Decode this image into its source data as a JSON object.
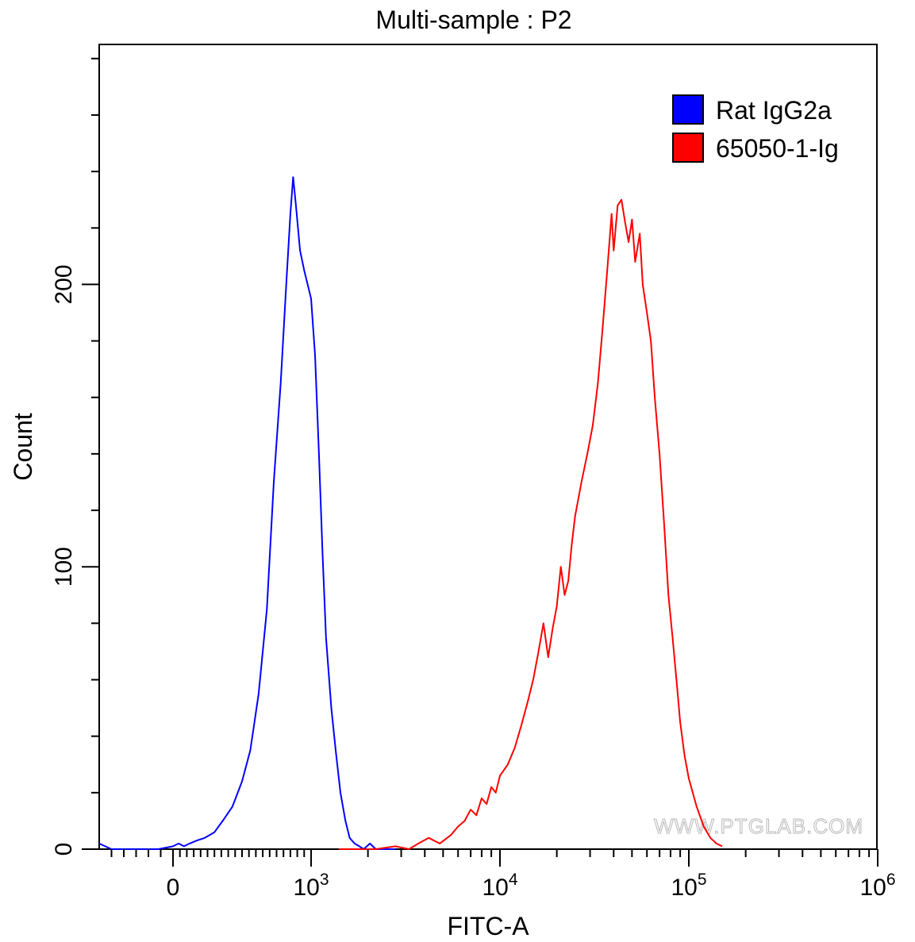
{
  "chart_data": {
    "type": "line",
    "title": "Multi-sample : P2",
    "xlabel": "FITC-A",
    "ylabel": "Count",
    "x_scale": "biexponential (linear near 0, log above 10^3)",
    "xlim": [
      -300,
      1000000
    ],
    "ylim": [
      0,
      285
    ],
    "grid": false,
    "legend_position": "top-right",
    "x_ticks": [
      {
        "value": 0,
        "label": "0",
        "sup": ""
      },
      {
        "value": 1000,
        "label": "10",
        "sup": "3"
      },
      {
        "value": 10000,
        "label": "10",
        "sup": "4"
      },
      {
        "value": 100000,
        "label": "10",
        "sup": "5"
      },
      {
        "value": 1000000,
        "label": "10",
        "sup": "6"
      }
    ],
    "y_ticks": [
      {
        "value": 0,
        "label": "0"
      },
      {
        "value": 100,
        "label": "100"
      },
      {
        "value": 200,
        "label": "200"
      }
    ],
    "watermark": "WWW.PTGLAB.COM",
    "series": [
      {
        "name": "Rat IgG2a",
        "color": "#0000ff",
        "points": [
          [
            -300,
            2
          ],
          [
            -250,
            0
          ],
          [
            -150,
            0
          ],
          [
            -60,
            0
          ],
          [
            0,
            1
          ],
          [
            40,
            2
          ],
          [
            80,
            1
          ],
          [
            120,
            2
          ],
          [
            170,
            3
          ],
          [
            230,
            4
          ],
          [
            300,
            6
          ],
          [
            360,
            10
          ],
          [
            430,
            15
          ],
          [
            500,
            24
          ],
          [
            560,
            35
          ],
          [
            620,
            55
          ],
          [
            680,
            85
          ],
          [
            730,
            130
          ],
          [
            780,
            165
          ],
          [
            820,
            200
          ],
          [
            850,
            225
          ],
          [
            870,
            238
          ],
          [
            890,
            228
          ],
          [
            920,
            212
          ],
          [
            950,
            205
          ],
          [
            1000,
            195
          ],
          [
            1050,
            175
          ],
          [
            1100,
            140
          ],
          [
            1150,
            105
          ],
          [
            1200,
            75
          ],
          [
            1280,
            50
          ],
          [
            1350,
            35
          ],
          [
            1430,
            20
          ],
          [
            1520,
            10
          ],
          [
            1600,
            4
          ],
          [
            1700,
            2
          ],
          [
            1800,
            1
          ],
          [
            1900,
            0
          ],
          [
            2050,
            2
          ],
          [
            2200,
            0
          ],
          [
            2500,
            0
          ],
          [
            2800,
            0
          ]
        ]
      },
      {
        "name": "65050-1-Ig",
        "color": "#ff0000",
        "points": [
          [
            1400,
            0
          ],
          [
            2200,
            0
          ],
          [
            2800,
            1
          ],
          [
            3300,
            0
          ],
          [
            3700,
            2
          ],
          [
            4200,
            4
          ],
          [
            4800,
            2
          ],
          [
            5500,
            5
          ],
          [
            6000,
            8
          ],
          [
            6500,
            10
          ],
          [
            7000,
            14
          ],
          [
            7500,
            12
          ],
          [
            8000,
            18
          ],
          [
            8500,
            16
          ],
          [
            9000,
            22
          ],
          [
            9500,
            20
          ],
          [
            10000,
            26
          ],
          [
            11000,
            30
          ],
          [
            12000,
            36
          ],
          [
            13000,
            44
          ],
          [
            14000,
            52
          ],
          [
            15000,
            60
          ],
          [
            16000,
            70
          ],
          [
            17000,
            80
          ],
          [
            18000,
            68
          ],
          [
            19000,
            78
          ],
          [
            20000,
            86
          ],
          [
            21000,
            100
          ],
          [
            22000,
            90
          ],
          [
            23000,
            95
          ],
          [
            24000,
            108
          ],
          [
            25000,
            118
          ],
          [
            27000,
            130
          ],
          [
            29000,
            140
          ],
          [
            31000,
            150
          ],
          [
            33000,
            165
          ],
          [
            35000,
            185
          ],
          [
            37000,
            205
          ],
          [
            39000,
            225
          ],
          [
            40000,
            212
          ],
          [
            42000,
            228
          ],
          [
            44000,
            230
          ],
          [
            46000,
            222
          ],
          [
            48000,
            215
          ],
          [
            50000,
            223
          ],
          [
            52000,
            208
          ],
          [
            55000,
            218
          ],
          [
            57000,
            200
          ],
          [
            60000,
            190
          ],
          [
            63000,
            180
          ],
          [
            66000,
            160
          ],
          [
            70000,
            140
          ],
          [
            74000,
            115
          ],
          [
            78000,
            90
          ],
          [
            82000,
            75
          ],
          [
            86000,
            60
          ],
          [
            90000,
            45
          ],
          [
            95000,
            33
          ],
          [
            100000,
            25
          ],
          [
            110000,
            15
          ],
          [
            120000,
            8
          ],
          [
            130000,
            4
          ],
          [
            140000,
            2
          ],
          [
            150000,
            1
          ]
        ]
      }
    ]
  }
}
